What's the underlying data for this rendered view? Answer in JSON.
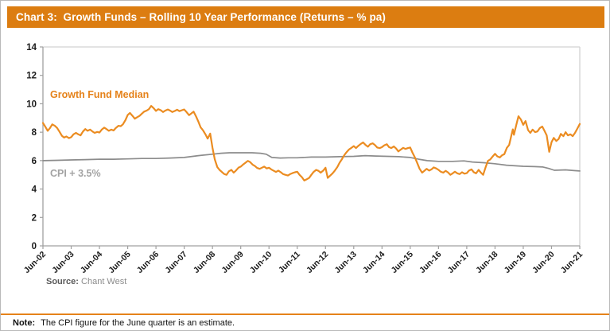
{
  "header": {
    "title": "Chart 3:  Growth Funds – Rolling 10 Year Performance (Returns – % pa)",
    "bg_color": "#DC7D11",
    "text_color": "#FFFFFF"
  },
  "source": {
    "label": "Source:",
    "value": " Chant West"
  },
  "note": {
    "label": "Note:",
    "text": "The CPI figure for the June quarter is an estimate."
  },
  "divider_color": "#E5821A",
  "chart_data": {
    "type": "line",
    "title": "Growth Funds – Rolling 10 Year Performance (Returns – % pa)",
    "xlabel": "",
    "ylabel": "",
    "x_unit": "years after Jun-02 (0 = Jun-02, 19 = Jun-21)",
    "x_tick_labels": [
      "Jun-02",
      "Jun-03",
      "Jun-04",
      "Jun-05",
      "Jun-06",
      "Jun-07",
      "Jun-08",
      "Jun-09",
      "Jun-10",
      "Jun-11",
      "Jun-12",
      "Jun-13",
      "Jun-14",
      "Jun-15",
      "Jun-16",
      "Jun-17",
      "Jun-18",
      "Jun-19",
      "Jun-20",
      "Jun-21"
    ],
    "y_ticks": [
      0,
      2,
      4,
      6,
      8,
      10,
      12,
      14
    ],
    "ylim": [
      0,
      14
    ],
    "xlim": [
      0,
      19
    ],
    "grid": false,
    "legend_position": "inline-labels",
    "axis_color": "#A0A0A0",
    "border_color": "#D2D2D2",
    "tick_label_color": "#1a1a1a",
    "legend": [
      {
        "name": "Growth Fund Median",
        "color": "#E5821A"
      },
      {
        "name": "CPI + 3.5%",
        "color": "#A3A3A3"
      }
    ],
    "series": [
      {
        "name": "CPI + 3.5%",
        "color": "#8C8C8C",
        "width": 1.7,
        "points": [
          [
            0,
            6.0
          ],
          [
            0.5,
            6.02
          ],
          [
            1,
            6.05
          ],
          [
            1.5,
            6.07
          ],
          [
            2,
            6.1
          ],
          [
            2.5,
            6.1
          ],
          [
            3,
            6.12
          ],
          [
            3.5,
            6.15
          ],
          [
            4,
            6.15
          ],
          [
            4.5,
            6.18
          ],
          [
            5,
            6.22
          ],
          [
            5.5,
            6.35
          ],
          [
            6,
            6.45
          ],
          [
            6.3,
            6.52
          ],
          [
            6.6,
            6.55
          ],
          [
            7,
            6.55
          ],
          [
            7.4,
            6.55
          ],
          [
            7.7,
            6.52
          ],
          [
            7.9,
            6.45
          ],
          [
            8.1,
            6.22
          ],
          [
            8.4,
            6.18
          ],
          [
            8.7,
            6.2
          ],
          [
            9,
            6.2
          ],
          [
            9.5,
            6.25
          ],
          [
            10,
            6.25
          ],
          [
            10.5,
            6.28
          ],
          [
            11,
            6.3
          ],
          [
            11.4,
            6.35
          ],
          [
            11.8,
            6.32
          ],
          [
            12.2,
            6.3
          ],
          [
            12.6,
            6.28
          ],
          [
            13,
            6.22
          ],
          [
            13.3,
            6.1
          ],
          [
            13.6,
            6.0
          ],
          [
            14,
            5.95
          ],
          [
            14.5,
            5.95
          ],
          [
            14.9,
            5.98
          ],
          [
            15.2,
            5.9
          ],
          [
            15.6,
            5.85
          ],
          [
            16,
            5.78
          ],
          [
            16.4,
            5.68
          ],
          [
            17,
            5.6
          ],
          [
            17.4,
            5.58
          ],
          [
            17.7,
            5.55
          ],
          [
            17.9,
            5.45
          ],
          [
            18.1,
            5.32
          ],
          [
            18.5,
            5.35
          ],
          [
            18.8,
            5.3
          ],
          [
            19,
            5.27
          ]
        ]
      },
      {
        "name": "Growth Fund Median",
        "color": "#EB8C21",
        "width": 2.2,
        "points": [
          [
            0,
            8.65
          ],
          [
            0.08,
            8.4
          ],
          [
            0.17,
            8.1
          ],
          [
            0.25,
            8.3
          ],
          [
            0.33,
            8.55
          ],
          [
            0.42,
            8.45
          ],
          [
            0.5,
            8.3
          ],
          [
            0.58,
            8.05
          ],
          [
            0.67,
            7.75
          ],
          [
            0.75,
            7.62
          ],
          [
            0.83,
            7.7
          ],
          [
            0.92,
            7.58
          ],
          [
            1,
            7.65
          ],
          [
            1.08,
            7.85
          ],
          [
            1.17,
            7.95
          ],
          [
            1.25,
            7.85
          ],
          [
            1.33,
            7.78
          ],
          [
            1.42,
            8.05
          ],
          [
            1.5,
            8.22
          ],
          [
            1.58,
            8.1
          ],
          [
            1.67,
            8.18
          ],
          [
            1.75,
            8.05
          ],
          [
            1.83,
            7.95
          ],
          [
            1.92,
            8.02
          ],
          [
            2,
            7.98
          ],
          [
            2.08,
            8.18
          ],
          [
            2.17,
            8.32
          ],
          [
            2.25,
            8.22
          ],
          [
            2.33,
            8.1
          ],
          [
            2.42,
            8.18
          ],
          [
            2.5,
            8.12
          ],
          [
            2.58,
            8.3
          ],
          [
            2.67,
            8.45
          ],
          [
            2.75,
            8.42
          ],
          [
            2.83,
            8.55
          ],
          [
            2.92,
            8.85
          ],
          [
            3,
            9.22
          ],
          [
            3.08,
            9.35
          ],
          [
            3.17,
            9.15
          ],
          [
            3.25,
            8.95
          ],
          [
            3.33,
            9.05
          ],
          [
            3.42,
            9.15
          ],
          [
            3.5,
            9.3
          ],
          [
            3.58,
            9.45
          ],
          [
            3.67,
            9.52
          ],
          [
            3.75,
            9.62
          ],
          [
            3.83,
            9.85
          ],
          [
            3.92,
            9.68
          ],
          [
            4,
            9.5
          ],
          [
            4.08,
            9.62
          ],
          [
            4.17,
            9.55
          ],
          [
            4.25,
            9.42
          ],
          [
            4.33,
            9.52
          ],
          [
            4.42,
            9.6
          ],
          [
            4.5,
            9.52
          ],
          [
            4.58,
            9.42
          ],
          [
            4.67,
            9.5
          ],
          [
            4.75,
            9.58
          ],
          [
            4.83,
            9.48
          ],
          [
            4.92,
            9.55
          ],
          [
            5,
            9.6
          ],
          [
            5.08,
            9.42
          ],
          [
            5.17,
            9.2
          ],
          [
            5.25,
            9.32
          ],
          [
            5.33,
            9.45
          ],
          [
            5.42,
            9.1
          ],
          [
            5.5,
            8.75
          ],
          [
            5.58,
            8.35
          ],
          [
            5.67,
            8.12
          ],
          [
            5.75,
            7.85
          ],
          [
            5.83,
            7.55
          ],
          [
            5.92,
            7.9
          ],
          [
            6,
            6.9
          ],
          [
            6.08,
            6.1
          ],
          [
            6.17,
            5.55
          ],
          [
            6.25,
            5.35
          ],
          [
            6.33,
            5.2
          ],
          [
            6.42,
            5.05
          ],
          [
            6.5,
            5.0
          ],
          [
            6.58,
            5.25
          ],
          [
            6.67,
            5.35
          ],
          [
            6.75,
            5.15
          ],
          [
            6.83,
            5.3
          ],
          [
            6.92,
            5.5
          ],
          [
            7,
            5.58
          ],
          [
            7.08,
            5.72
          ],
          [
            7.17,
            5.85
          ],
          [
            7.25,
            5.98
          ],
          [
            7.33,
            5.9
          ],
          [
            7.42,
            5.72
          ],
          [
            7.5,
            5.62
          ],
          [
            7.58,
            5.48
          ],
          [
            7.67,
            5.42
          ],
          [
            7.75,
            5.5
          ],
          [
            7.83,
            5.58
          ],
          [
            7.92,
            5.45
          ],
          [
            8,
            5.5
          ],
          [
            8.08,
            5.38
          ],
          [
            8.17,
            5.28
          ],
          [
            8.25,
            5.2
          ],
          [
            8.33,
            5.3
          ],
          [
            8.42,
            5.18
          ],
          [
            8.5,
            5.05
          ],
          [
            8.58,
            5.0
          ],
          [
            8.67,
            4.95
          ],
          [
            8.75,
            5.05
          ],
          [
            8.83,
            5.12
          ],
          [
            8.92,
            5.18
          ],
          [
            9,
            5.22
          ],
          [
            9.08,
            5.0
          ],
          [
            9.17,
            4.82
          ],
          [
            9.25,
            4.6
          ],
          [
            9.33,
            4.68
          ],
          [
            9.42,
            4.78
          ],
          [
            9.5,
            5.0
          ],
          [
            9.58,
            5.2
          ],
          [
            9.67,
            5.35
          ],
          [
            9.75,
            5.28
          ],
          [
            9.83,
            5.15
          ],
          [
            9.92,
            5.3
          ],
          [
            10,
            5.5
          ],
          [
            10.08,
            4.78
          ],
          [
            10.17,
            4.95
          ],
          [
            10.25,
            5.1
          ],
          [
            10.33,
            5.3
          ],
          [
            10.42,
            5.55
          ],
          [
            10.5,
            5.85
          ],
          [
            10.58,
            6.1
          ],
          [
            10.67,
            6.4
          ],
          [
            10.75,
            6.6
          ],
          [
            10.83,
            6.78
          ],
          [
            10.92,
            6.9
          ],
          [
            11,
            7.02
          ],
          [
            11.08,
            6.88
          ],
          [
            11.17,
            7.05
          ],
          [
            11.25,
            7.18
          ],
          [
            11.33,
            7.28
          ],
          [
            11.42,
            7.1
          ],
          [
            11.5,
            6.98
          ],
          [
            11.58,
            7.15
          ],
          [
            11.67,
            7.22
          ],
          [
            11.75,
            7.1
          ],
          [
            11.83,
            6.92
          ],
          [
            11.92,
            6.88
          ],
          [
            12,
            6.95
          ],
          [
            12.08,
            7.08
          ],
          [
            12.17,
            7.15
          ],
          [
            12.25,
            6.95
          ],
          [
            12.33,
            6.88
          ],
          [
            12.42,
            7.0
          ],
          [
            12.5,
            6.85
          ],
          [
            12.58,
            6.65
          ],
          [
            12.67,
            6.78
          ],
          [
            12.75,
            6.9
          ],
          [
            12.83,
            6.82
          ],
          [
            12.92,
            6.88
          ],
          [
            13,
            6.92
          ],
          [
            13.08,
            6.55
          ],
          [
            13.17,
            6.2
          ],
          [
            13.25,
            5.82
          ],
          [
            13.33,
            5.42
          ],
          [
            13.42,
            5.15
          ],
          [
            13.5,
            5.28
          ],
          [
            13.58,
            5.42
          ],
          [
            13.67,
            5.3
          ],
          [
            13.75,
            5.38
          ],
          [
            13.83,
            5.52
          ],
          [
            13.92,
            5.45
          ],
          [
            14,
            5.35
          ],
          [
            14.08,
            5.22
          ],
          [
            14.17,
            5.15
          ],
          [
            14.25,
            5.28
          ],
          [
            14.33,
            5.18
          ],
          [
            14.42,
            5.0
          ],
          [
            14.5,
            5.1
          ],
          [
            14.58,
            5.22
          ],
          [
            14.67,
            5.1
          ],
          [
            14.75,
            5.05
          ],
          [
            14.83,
            5.18
          ],
          [
            14.92,
            5.08
          ],
          [
            15,
            5.12
          ],
          [
            15.08,
            5.3
          ],
          [
            15.17,
            5.38
          ],
          [
            15.25,
            5.18
          ],
          [
            15.33,
            5.1
          ],
          [
            15.42,
            5.35
          ],
          [
            15.5,
            5.15
          ],
          [
            15.58,
            5.0
          ],
          [
            15.67,
            5.55
          ],
          [
            15.75,
            5.98
          ],
          [
            15.83,
            6.08
          ],
          [
            15.92,
            6.3
          ],
          [
            16,
            6.48
          ],
          [
            16.08,
            6.3
          ],
          [
            16.17,
            6.22
          ],
          [
            16.25,
            6.38
          ],
          [
            16.33,
            6.45
          ],
          [
            16.42,
            6.9
          ],
          [
            16.5,
            7.1
          ],
          [
            16.58,
            7.78
          ],
          [
            16.63,
            8.2
          ],
          [
            16.67,
            7.82
          ],
          [
            16.75,
            8.5
          ],
          [
            16.83,
            9.12
          ],
          [
            16.92,
            8.88
          ],
          [
            17,
            8.52
          ],
          [
            17.08,
            8.78
          ],
          [
            17.17,
            8.15
          ],
          [
            17.25,
            7.95
          ],
          [
            17.33,
            8.18
          ],
          [
            17.42,
            8.0
          ],
          [
            17.5,
            8.05
          ],
          [
            17.58,
            8.28
          ],
          [
            17.67,
            8.4
          ],
          [
            17.75,
            8.1
          ],
          [
            17.83,
            7.78
          ],
          [
            17.92,
            6.62
          ],
          [
            18,
            7.3
          ],
          [
            18.08,
            7.6
          ],
          [
            18.17,
            7.38
          ],
          [
            18.25,
            7.52
          ],
          [
            18.33,
            7.88
          ],
          [
            18.42,
            7.72
          ],
          [
            18.5,
            8.0
          ],
          [
            18.58,
            7.78
          ],
          [
            18.67,
            7.85
          ],
          [
            18.75,
            7.72
          ],
          [
            18.83,
            7.95
          ],
          [
            18.92,
            8.28
          ],
          [
            19,
            8.58
          ]
        ]
      }
    ]
  }
}
